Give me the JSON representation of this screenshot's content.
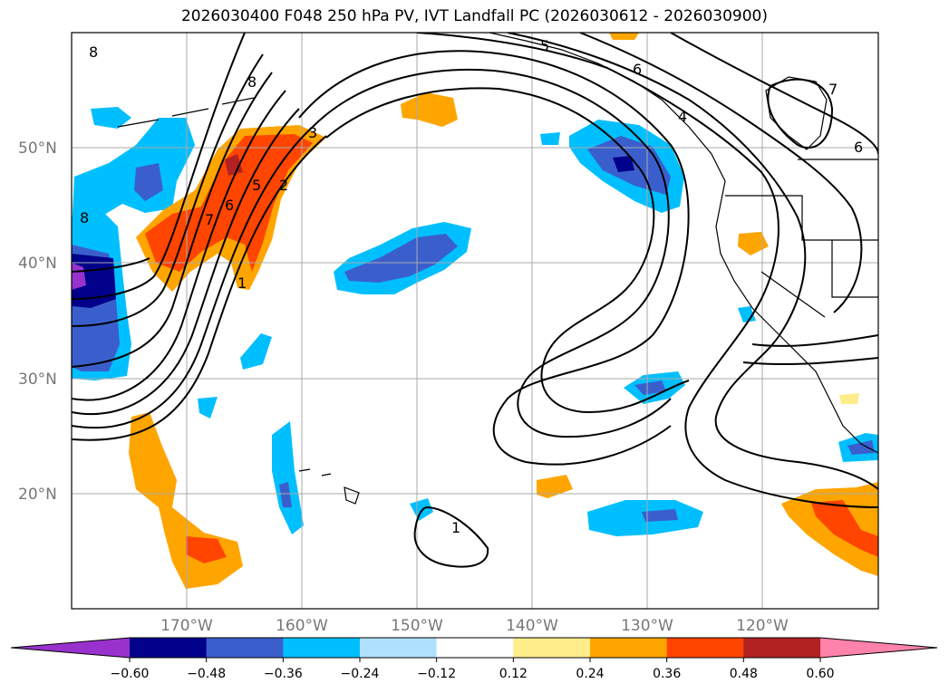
{
  "title": "2026030400 F048 250 hPa PV, IVT Landfall PC (2026030612 - 2026030900)",
  "lat_labels": [
    "50°N",
    "40°N",
    "30°N",
    "20°N"
  ],
  "lon_labels": [
    "170°W",
    "160°W",
    "150°W",
    "140°W",
    "130°W",
    "120°W"
  ],
  "colorbar": {
    "ticks": [
      "−0.60",
      "−0.48",
      "−0.36",
      "−0.24",
      "−0.12",
      "0.12",
      "0.24",
      "0.36",
      "0.48",
      "0.60"
    ],
    "colors": [
      "#9932cc",
      "#00008b",
      "#3a5fcd",
      "#00bfff",
      "#b0e2ff",
      "#ffffff",
      "#ffec8b",
      "#ffa500",
      "#ff4500",
      "#b22222",
      "#ff82ab"
    ]
  },
  "contour_labels": [
    "8",
    "8",
    "5",
    "6",
    "4",
    "3",
    "2",
    "1",
    "6",
    "5",
    "7",
    "6",
    "7",
    "1",
    "8"
  ],
  "chart_data": {
    "type": "map",
    "projection": "cylindrical",
    "lon_range": [
      -180,
      -110
    ],
    "lat_range": [
      10,
      60
    ],
    "fill_variable": "IVT Landfall PC",
    "contour_variable": "250 hPa PV",
    "fill_levels": [
      -0.6,
      -0.48,
      -0.36,
      -0.24,
      -0.12,
      0.12,
      0.24,
      0.36,
      0.48,
      0.6
    ],
    "contour_levels": [
      1,
      2,
      3,
      4,
      5,
      6,
      7,
      8
    ]
  }
}
